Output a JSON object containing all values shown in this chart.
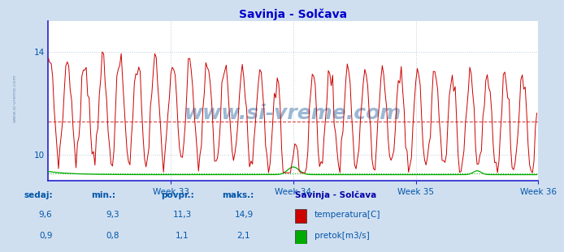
{
  "title": "Savinja - Solčava",
  "title_color": "#0000cc",
  "bg_color": "#d0dff0",
  "plot_bg_color": "#ffffff",
  "x_label_weeks": [
    "Week 33",
    "Week 34",
    "Week 35",
    "Week 36"
  ],
  "temp_color": "#cc0000",
  "flow_color": "#00aa00",
  "avg_temp": 11.3,
  "avg_flow": 1.1,
  "temp_min": 9.3,
  "temp_max": 14.9,
  "temp_current": 9.6,
  "flow_min": 0.8,
  "flow_max": 2.1,
  "flow_current": 0.9,
  "flow_avg": 1.1,
  "temp_ylim": [
    9.0,
    15.2
  ],
  "n_points": 336,
  "watermark": "www.si-vreme.com",
  "watermark_color": "#9bb8d4",
  "legend_title": "Savinja - Solčava",
  "legend_title_color": "#0000aa",
  "label_color": "#0055aa",
  "bottom_bg": "#d0dff0",
  "axis_color": "#2222cc",
  "grid_color": "#bbccdd",
  "yticks": [
    10,
    14
  ]
}
